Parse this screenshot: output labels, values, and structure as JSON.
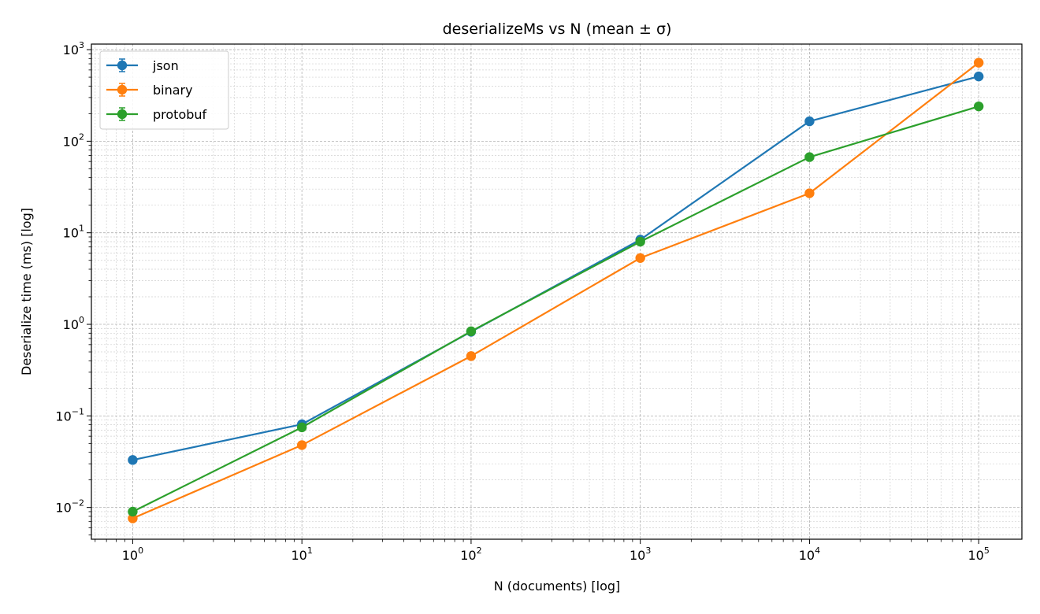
{
  "chart_data": {
    "type": "line",
    "title": "deserializeMs vs N (mean ± σ)",
    "xlabel": "N (documents) [log]",
    "ylabel": "Deserialize time (ms) [log]",
    "x_scale": "log",
    "y_scale": "log",
    "xlim": [
      0.57,
      180000
    ],
    "ylim": [
      0.0045,
      1150
    ],
    "x_ticks": [
      {
        "value": 1,
        "base": "10",
        "exp": "0"
      },
      {
        "value": 10,
        "base": "10",
        "exp": "1"
      },
      {
        "value": 100,
        "base": "10",
        "exp": "2"
      },
      {
        "value": 1000,
        "base": "10",
        "exp": "3"
      },
      {
        "value": 10000,
        "base": "10",
        "exp": "4"
      },
      {
        "value": 100000,
        "base": "10",
        "exp": "5"
      }
    ],
    "y_ticks": [
      {
        "value": 0.01,
        "base": "10",
        "exp": "−2"
      },
      {
        "value": 0.1,
        "base": "10",
        "exp": "−1"
      },
      {
        "value": 1,
        "base": "10",
        "exp": "0"
      },
      {
        "value": 10,
        "base": "10",
        "exp": "1"
      },
      {
        "value": 100,
        "base": "10",
        "exp": "2"
      },
      {
        "value": 1000,
        "base": "10",
        "exp": "3"
      }
    ],
    "grid": true,
    "legend_position": "top-left",
    "x": [
      1,
      10,
      100,
      1000,
      10000,
      100000
    ],
    "series": [
      {
        "name": "json",
        "color": "#1f77b4",
        "values": [
          0.033,
          0.081,
          0.83,
          8.4,
          165,
          510
        ]
      },
      {
        "name": "binary",
        "color": "#ff7f0e",
        "values": [
          0.0076,
          0.048,
          0.45,
          5.3,
          27,
          720
        ]
      },
      {
        "name": "protobuf",
        "color": "#2ca02c",
        "values": [
          0.009,
          0.075,
          0.84,
          8.0,
          67,
          240
        ]
      }
    ]
  }
}
